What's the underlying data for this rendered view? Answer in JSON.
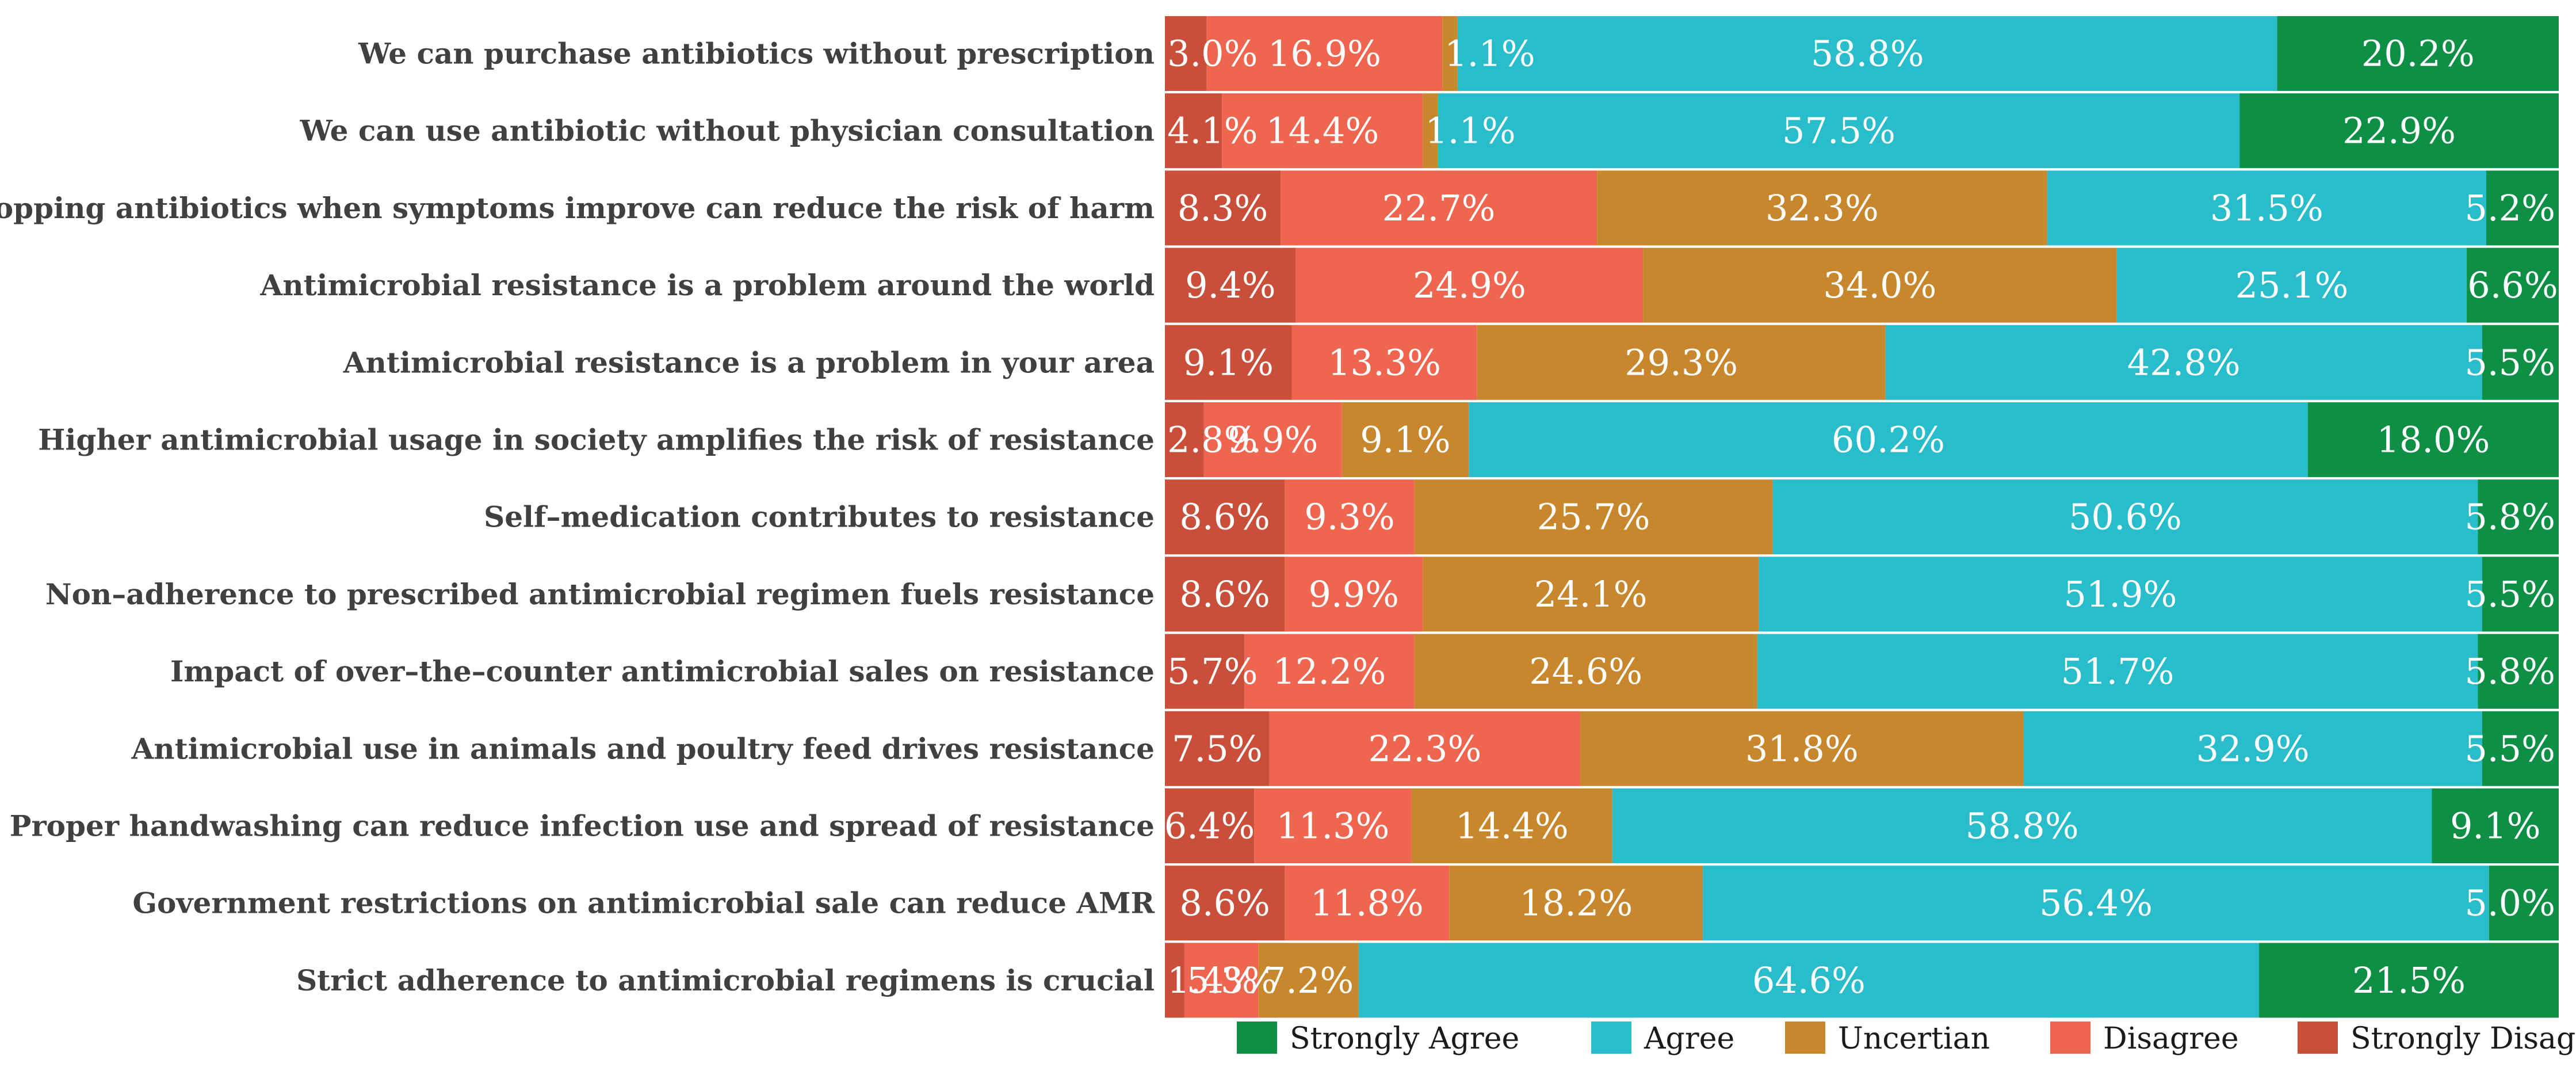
{
  "chart_data": {
    "type": "bar",
    "orientation": "horizontal",
    "stacked": true,
    "percent": true,
    "title": "",
    "xlabel": "",
    "ylabel": "",
    "xlim": [
      0,
      100
    ],
    "grid": false,
    "legend_position": "bottom",
    "categories": [
      "We can purchase antibiotics without prescription",
      "We can use antibiotic without physician consultation",
      "Stopping antibiotics when symptoms improve can reduce the risk of harm",
      "Antimicrobial resistance is a problem around the world",
      "Antimicrobial resistance is a problem in your area",
      "Higher antimicrobial usage in society amplifies the risk of resistance",
      "Self–medication contributes to resistance",
      "Non–adherence to prescribed antimicrobial regimen fuels resistance",
      "Impact of over–the–counter antimicrobial sales on resistance",
      "Antimicrobial  use in animals and poultry feed drives resistance",
      "Proper handwashing can reduce infection use and spread of resistance",
      "Government restrictions on antimicrobial  sale can reduce AMR",
      "Strict adherence to antimicrobial  regimens is crucial"
    ],
    "series": [
      {
        "name": "Strongly Disagree",
        "color": "#c94f3a",
        "values": [
          3.0,
          4.1,
          8.3,
          9.4,
          9.1,
          2.8,
          8.6,
          8.6,
          5.7,
          7.5,
          6.4,
          8.6,
          1.4
        ],
        "labels": [
          "3.0%",
          "4.1%",
          "8.3%",
          "9.4%",
          "9.1%",
          "2.8%",
          "8.6%",
          "8.6%",
          "5.7%",
          "7.5%",
          "6.4%",
          "8.6%",
          "1.4%"
        ]
      },
      {
        "name": "Disagree",
        "color": "#ef6650",
        "values": [
          16.9,
          14.4,
          22.7,
          24.9,
          13.3,
          9.9,
          9.3,
          9.9,
          12.2,
          22.3,
          11.3,
          11.8,
          5.3
        ],
        "labels": [
          "16.9%",
          "14.4%",
          "22.7%",
          "24.9%",
          "13.3%",
          "9.9%",
          "9.3%",
          "9.9%",
          "12.2%",
          "22.3%",
          "11.3%",
          "11.8%",
          "5.3%"
        ]
      },
      {
        "name": "Uncertian",
        "color": "#c8862d",
        "values": [
          1.1,
          1.1,
          32.3,
          34.0,
          29.3,
          9.1,
          25.7,
          24.1,
          24.6,
          31.8,
          14.4,
          18.2,
          7.2
        ],
        "labels": [
          "1.1%",
          "1.1%",
          "32.3%",
          "34.0%",
          "29.3%",
          "9.1%",
          "25.7%",
          "24.1%",
          "24.6%",
          "31.8%",
          "14.4%",
          "18.2%",
          "7.2%"
        ]
      },
      {
        "name": "Agree",
        "color": "#29bccb",
        "values": [
          58.8,
          57.5,
          31.5,
          25.1,
          42.8,
          60.2,
          50.6,
          51.9,
          51.7,
          32.9,
          58.8,
          56.4,
          64.6
        ],
        "labels": [
          "58.8%",
          "57.5%",
          "31.5%",
          "25.1%",
          "42.8%",
          "60.2%",
          "50.6%",
          "51.9%",
          "51.7%",
          "32.9%",
          "58.8%",
          "56.4%",
          "64.6%"
        ]
      },
      {
        "name": "Strongly Agree",
        "color": "#0d8f46",
        "values": [
          20.2,
          22.9,
          5.2,
          6.6,
          5.5,
          18.0,
          5.8,
          5.5,
          5.8,
          5.5,
          9.1,
          5.0,
          21.5
        ],
        "labels": [
          "20.2%",
          "22.9%",
          "5.2%",
          "6.6%",
          "5.5%",
          "18.0%",
          "5.8%",
          "5.5%",
          "5.8%",
          "5.5%",
          "9.1%",
          "5.0%",
          "21.5%"
        ]
      }
    ],
    "legend_order": [
      "Strongly Agree",
      "Agree",
      "Uncertian",
      "Disagree",
      "Strongly Disagree"
    ]
  }
}
